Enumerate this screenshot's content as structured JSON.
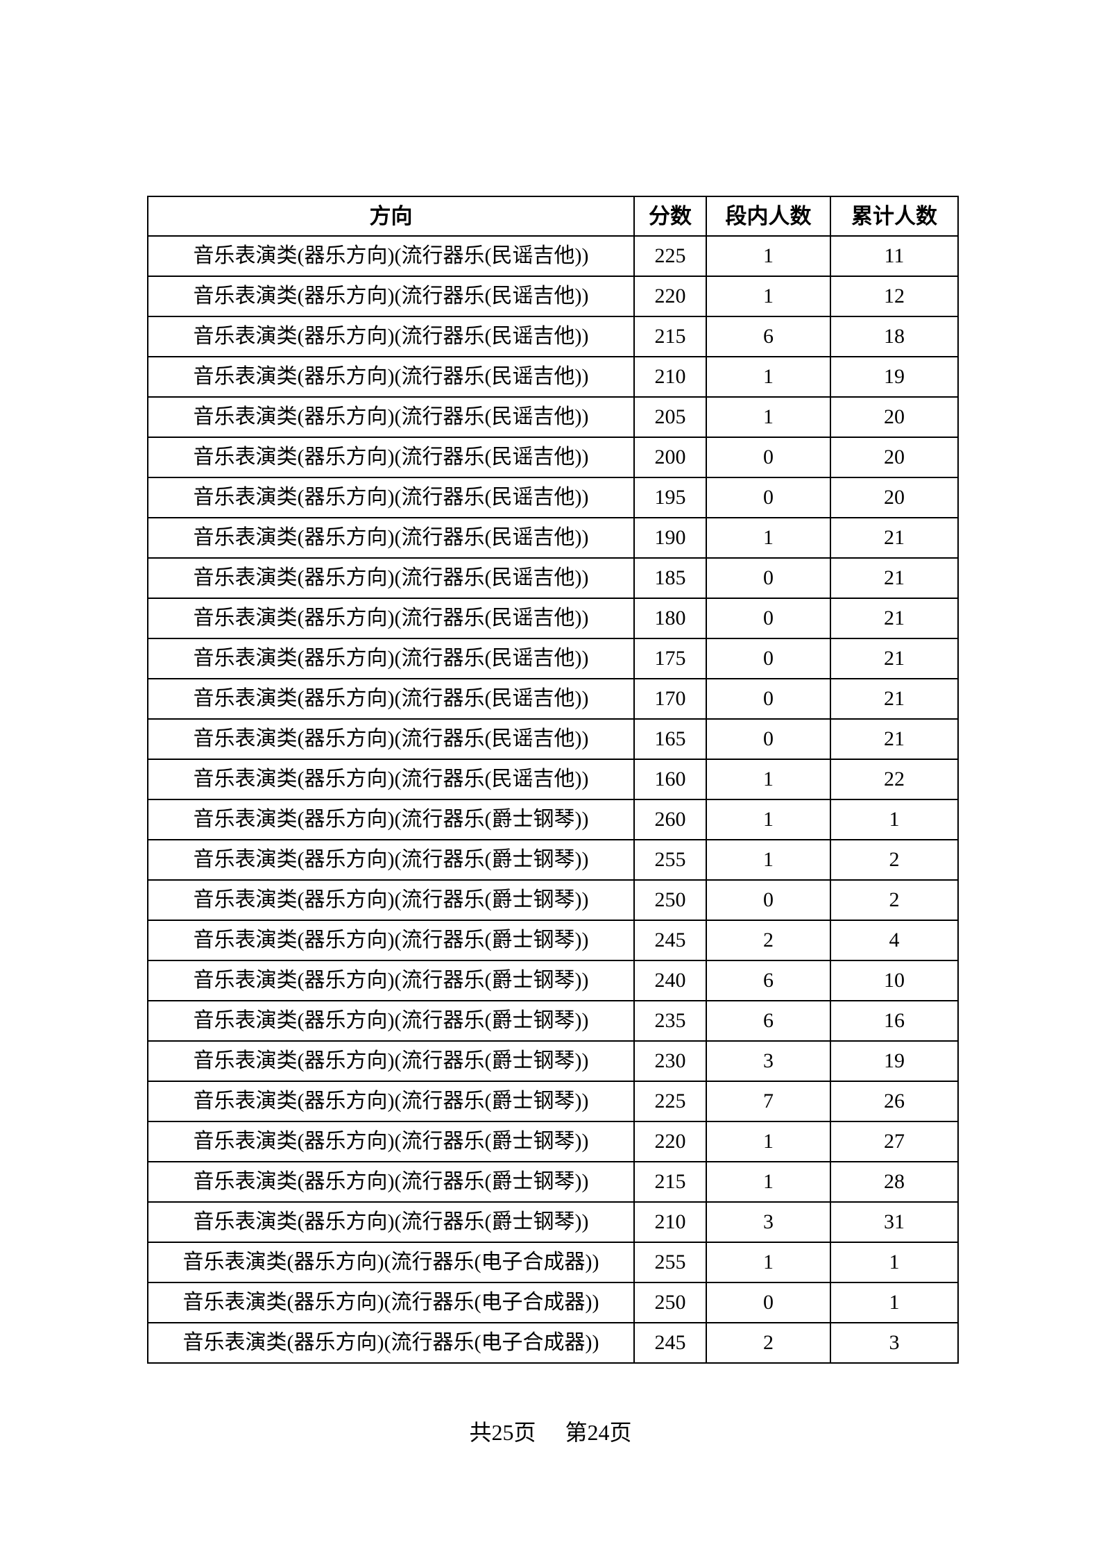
{
  "document": {
    "colors": {
      "background": "#ffffff",
      "text": "#000000",
      "border": "#000000"
    },
    "table": {
      "columns": [
        {
          "key": "direction",
          "label": "方向"
        },
        {
          "key": "score",
          "label": "分数"
        },
        {
          "key": "in_segment",
          "label": "段内人数"
        },
        {
          "key": "cumulative",
          "label": "累计人数"
        }
      ],
      "rows": [
        {
          "direction": "音乐表演类(器乐方向)(流行器乐(民谣吉他))",
          "score": "225",
          "in_segment": "1",
          "cumulative": "11"
        },
        {
          "direction": "音乐表演类(器乐方向)(流行器乐(民谣吉他))",
          "score": "220",
          "in_segment": "1",
          "cumulative": "12"
        },
        {
          "direction": "音乐表演类(器乐方向)(流行器乐(民谣吉他))",
          "score": "215",
          "in_segment": "6",
          "cumulative": "18"
        },
        {
          "direction": "音乐表演类(器乐方向)(流行器乐(民谣吉他))",
          "score": "210",
          "in_segment": "1",
          "cumulative": "19"
        },
        {
          "direction": "音乐表演类(器乐方向)(流行器乐(民谣吉他))",
          "score": "205",
          "in_segment": "1",
          "cumulative": "20"
        },
        {
          "direction": "音乐表演类(器乐方向)(流行器乐(民谣吉他))",
          "score": "200",
          "in_segment": "0",
          "cumulative": "20"
        },
        {
          "direction": "音乐表演类(器乐方向)(流行器乐(民谣吉他))",
          "score": "195",
          "in_segment": "0",
          "cumulative": "20"
        },
        {
          "direction": "音乐表演类(器乐方向)(流行器乐(民谣吉他))",
          "score": "190",
          "in_segment": "1",
          "cumulative": "21"
        },
        {
          "direction": "音乐表演类(器乐方向)(流行器乐(民谣吉他))",
          "score": "185",
          "in_segment": "0",
          "cumulative": "21"
        },
        {
          "direction": "音乐表演类(器乐方向)(流行器乐(民谣吉他))",
          "score": "180",
          "in_segment": "0",
          "cumulative": "21"
        },
        {
          "direction": "音乐表演类(器乐方向)(流行器乐(民谣吉他))",
          "score": "175",
          "in_segment": "0",
          "cumulative": "21"
        },
        {
          "direction": "音乐表演类(器乐方向)(流行器乐(民谣吉他))",
          "score": "170",
          "in_segment": "0",
          "cumulative": "21"
        },
        {
          "direction": "音乐表演类(器乐方向)(流行器乐(民谣吉他))",
          "score": "165",
          "in_segment": "0",
          "cumulative": "21"
        },
        {
          "direction": "音乐表演类(器乐方向)(流行器乐(民谣吉他))",
          "score": "160",
          "in_segment": "1",
          "cumulative": "22"
        },
        {
          "direction": "音乐表演类(器乐方向)(流行器乐(爵士钢琴))",
          "score": "260",
          "in_segment": "1",
          "cumulative": "1"
        },
        {
          "direction": "音乐表演类(器乐方向)(流行器乐(爵士钢琴))",
          "score": "255",
          "in_segment": "1",
          "cumulative": "2"
        },
        {
          "direction": "音乐表演类(器乐方向)(流行器乐(爵士钢琴))",
          "score": "250",
          "in_segment": "0",
          "cumulative": "2"
        },
        {
          "direction": "音乐表演类(器乐方向)(流行器乐(爵士钢琴))",
          "score": "245",
          "in_segment": "2",
          "cumulative": "4"
        },
        {
          "direction": "音乐表演类(器乐方向)(流行器乐(爵士钢琴))",
          "score": "240",
          "in_segment": "6",
          "cumulative": "10"
        },
        {
          "direction": "音乐表演类(器乐方向)(流行器乐(爵士钢琴))",
          "score": "235",
          "in_segment": "6",
          "cumulative": "16"
        },
        {
          "direction": "音乐表演类(器乐方向)(流行器乐(爵士钢琴))",
          "score": "230",
          "in_segment": "3",
          "cumulative": "19"
        },
        {
          "direction": "音乐表演类(器乐方向)(流行器乐(爵士钢琴))",
          "score": "225",
          "in_segment": "7",
          "cumulative": "26"
        },
        {
          "direction": "音乐表演类(器乐方向)(流行器乐(爵士钢琴))",
          "score": "220",
          "in_segment": "1",
          "cumulative": "27"
        },
        {
          "direction": "音乐表演类(器乐方向)(流行器乐(爵士钢琴))",
          "score": "215",
          "in_segment": "1",
          "cumulative": "28"
        },
        {
          "direction": "音乐表演类(器乐方向)(流行器乐(爵士钢琴))",
          "score": "210",
          "in_segment": "3",
          "cumulative": "31"
        },
        {
          "direction": "音乐表演类(器乐方向)(流行器乐(电子合成器))",
          "score": "255",
          "in_segment": "1",
          "cumulative": "1"
        },
        {
          "direction": "音乐表演类(器乐方向)(流行器乐(电子合成器))",
          "score": "250",
          "in_segment": "0",
          "cumulative": "1"
        },
        {
          "direction": "音乐表演类(器乐方向)(流行器乐(电子合成器))",
          "score": "245",
          "in_segment": "2",
          "cumulative": "3"
        }
      ]
    },
    "footer": {
      "total_pages": "共25页",
      "current_page": "第24页"
    }
  }
}
